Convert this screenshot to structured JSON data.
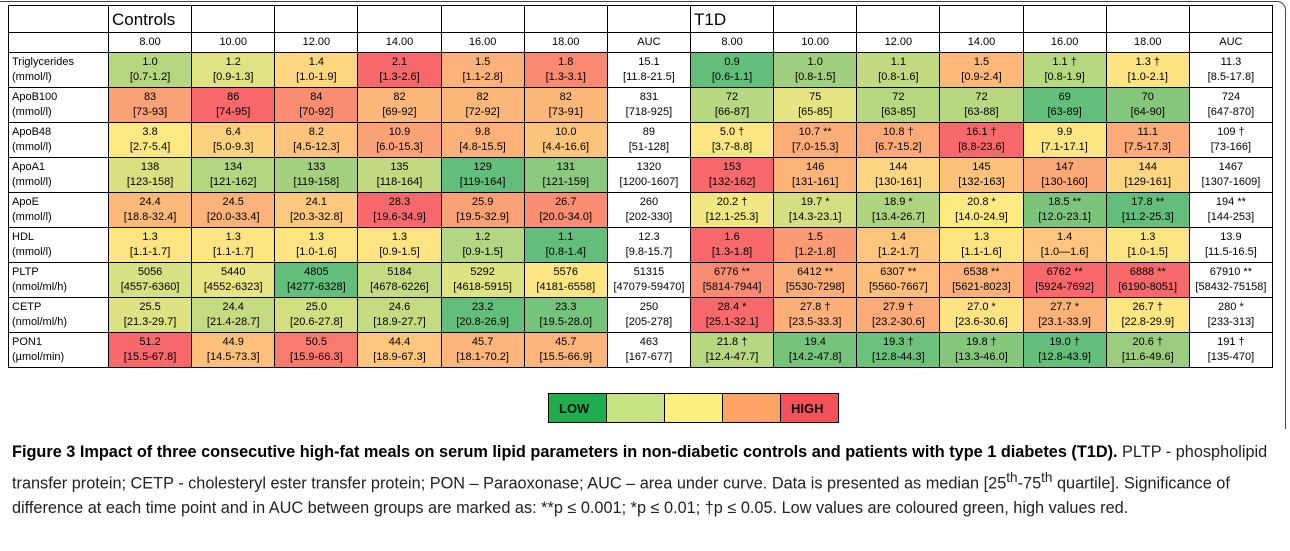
{
  "table": {
    "groups": [
      "Controls",
      "T1D"
    ],
    "columns": [
      "8.00",
      "10.00",
      "12.00",
      "14.00",
      "16.00",
      "18.00",
      "AUC"
    ],
    "rows": [
      {
        "name": "Triglycerides",
        "unit": "(mmol/l)",
        "cells": [
          {
            "value": "1.0",
            "range": "[0.7-1.2]",
            "color": "#b5d780"
          },
          {
            "value": "1.2",
            "range": "[0.9-1.3]",
            "color": "#dfe383"
          },
          {
            "value": "1.4",
            "range": "[1.0-1.9]",
            "color": "#ffd780"
          },
          {
            "value": "2.1",
            "range": "[1.3-2.6]",
            "color": "#f8696b"
          },
          {
            "value": "1.5",
            "range": "[1.1-2.8]",
            "color": "#fdb27a"
          },
          {
            "value": "1.8",
            "range": "[1.3-3.1]",
            "color": "#fa8a72"
          },
          {
            "value": "15.1",
            "range": "[11.8-21.5]"
          },
          {
            "value": "0.9",
            "range": "[0.6-1.1]",
            "color": "#63be7b"
          },
          {
            "value": "1.0",
            "range": "[0.8-1.5]",
            "color": "#9fcf7f"
          },
          {
            "value": "1.1",
            "range": "[0.8-1.6]",
            "color": "#c1da81"
          },
          {
            "value": "1.5",
            "range": "[0.9-2.4]",
            "color": "#fdb87a"
          },
          {
            "value": "1.1 †",
            "range": "[0.8-1.9]",
            "color": "#b8d880"
          },
          {
            "value": "1.3 †",
            "range": "[1.0-2.1]",
            "color": "#fee382"
          },
          {
            "value": "11.3",
            "range": "[8.5-17.8]"
          }
        ]
      },
      {
        "name": "ApoB100",
        "unit": "(mmol/l)",
        "cells": [
          {
            "value": "83",
            "range": "[73-93]",
            "color": "#fba276"
          },
          {
            "value": "86",
            "range": "[74-95]",
            "color": "#f8696b"
          },
          {
            "value": "84",
            "range": "[70-92]",
            "color": "#fa8c72"
          },
          {
            "value": "82",
            "range": "[69-92]",
            "color": "#fcb77a"
          },
          {
            "value": "82",
            "range": "[72-92]",
            "color": "#fcb77a"
          },
          {
            "value": "82",
            "range": "[73-91]",
            "color": "#fcb77a"
          },
          {
            "value": "831",
            "range": "[718-925]"
          },
          {
            "value": "72",
            "range": "[66-87]",
            "color": "#b8d780"
          },
          {
            "value": "75",
            "range": "[65-85]",
            "color": "#e6e483"
          },
          {
            "value": "72",
            "range": "[63-85]",
            "color": "#b8d780"
          },
          {
            "value": "72",
            "range": "[63-88]",
            "color": "#b8d780"
          },
          {
            "value": "69",
            "range": "[63-89]",
            "color": "#63be7b"
          },
          {
            "value": "70",
            "range": "[64-90]",
            "color": "#86c77d"
          },
          {
            "value": "724",
            "range": "[647-870]"
          }
        ]
      },
      {
        "name": "ApoB48",
        "unit": "(mmol/l)",
        "cells": [
          {
            "value": "3.8",
            "range": "[2.7-5.4]",
            "color": "#fee883"
          },
          {
            "value": "6.4",
            "range": "[5.0-9.3]",
            "color": "#fdd27f"
          },
          {
            "value": "8.2",
            "range": "[4.5-12.3]",
            "color": "#fdc27c"
          },
          {
            "value": "10.9",
            "range": "[6.0-15.3]",
            "color": "#fba276"
          },
          {
            "value": "9.8",
            "range": "[4.8-15.5]",
            "color": "#fcb179"
          },
          {
            "value": "10.0",
            "range": "[4.4-16.6]",
            "color": "#fdc47c"
          },
          {
            "value": "89",
            "range": "[51-128]"
          },
          {
            "value": "5.0 †",
            "range": "[3.7-8.8]",
            "color": "#fee683"
          },
          {
            "value": "10.7 **",
            "range": "[7.0-15.3]",
            "color": "#fcae78"
          },
          {
            "value": "10.8 †",
            "range": "[6.7-15.2]",
            "color": "#fcaa78"
          },
          {
            "value": "16.1 †",
            "range": "[8.8-23.6]",
            "color": "#f8696b"
          },
          {
            "value": "9.9",
            "range": "[7.1-17.1]",
            "color": "#fee683"
          },
          {
            "value": "11.1",
            "range": "[7.5-17.3]",
            "color": "#fcac78"
          },
          {
            "value": "109 †",
            "range": "[73-166]"
          }
        ]
      },
      {
        "name": "ApoA1",
        "unit": "(mmol/l)",
        "cells": [
          {
            "value": "138",
            "range": "[123-158]",
            "color": "#d9e082"
          },
          {
            "value": "134",
            "range": "[121-162]",
            "color": "#b3d680"
          },
          {
            "value": "133",
            "range": "[119-158]",
            "color": "#a5d17f"
          },
          {
            "value": "135",
            "range": "[118-164]",
            "color": "#c2da81"
          },
          {
            "value": "129",
            "range": "[119-164]",
            "color": "#63be7b"
          },
          {
            "value": "131",
            "range": "[121-159]",
            "color": "#8cc97e"
          },
          {
            "value": "1320",
            "range": "[1200-1607]"
          },
          {
            "value": "153",
            "range": "[132-162]",
            "color": "#f8696b"
          },
          {
            "value": "146",
            "range": "[131-161]",
            "color": "#fcb479"
          },
          {
            "value": "144",
            "range": "[130-161]",
            "color": "#fed580"
          },
          {
            "value": "145",
            "range": "[132-163]",
            "color": "#fcc27c"
          },
          {
            "value": "147",
            "range": "[130-160]",
            "color": "#fba877"
          },
          {
            "value": "144",
            "range": "[129-161]",
            "color": "#fed580"
          },
          {
            "value": "1467",
            "range": "[1307-1609]"
          }
        ]
      },
      {
        "name": "ApoE",
        "unit": "(mmol/l)",
        "cells": [
          {
            "value": "24.4",
            "range": "[18.8-32.4]",
            "color": "#fdb97a"
          },
          {
            "value": "24.5",
            "range": "[20.0-33.4]",
            "color": "#fcb379"
          },
          {
            "value": "24.1",
            "range": "[20.3-32.8]",
            "color": "#fec87e"
          },
          {
            "value": "28.3",
            "range": "[19.6-34.9]",
            "color": "#f8696b"
          },
          {
            "value": "25.9",
            "range": "[19.5-32.9]",
            "color": "#fba176"
          },
          {
            "value": "26.7",
            "range": "[20.0-34.0]",
            "color": "#fa8d72"
          },
          {
            "value": "260",
            "range": "[202-330]"
          },
          {
            "value": "20.2 †",
            "range": "[12.1-25.3]",
            "color": "#f0e784"
          },
          {
            "value": "19.7 *",
            "range": "[14.3-23.1]",
            "color": "#d3df82"
          },
          {
            "value": "18.9 *",
            "range": "[13.4-26.7]",
            "color": "#aed480"
          },
          {
            "value": "20.8 *",
            "range": "[14.0-24.9]",
            "color": "#fee983"
          },
          {
            "value": "18.5 **",
            "range": "[12.0-23.1]",
            "color": "#7cc47c"
          },
          {
            "value": "17.8 **",
            "range": "[11.2-25.3]",
            "color": "#63be7b"
          },
          {
            "value": "194 **",
            "range": "[144-253]"
          }
        ]
      },
      {
        "name": "HDL",
        "unit": "(mmol/l)",
        "cells": [
          {
            "value": "1.3",
            "range": "[1.1-1.7]",
            "color": "#fee482"
          },
          {
            "value": "1.3",
            "range": "[1.1-1.7]",
            "color": "#fee482"
          },
          {
            "value": "1.3",
            "range": "[1.0-1.6]",
            "color": "#fee482"
          },
          {
            "value": "1.3",
            "range": "[0.9-1.5]",
            "color": "#fee482"
          },
          {
            "value": "1.2",
            "range": "[0.9-1.5]",
            "color": "#b3d680"
          },
          {
            "value": "1.1",
            "range": "[0.8-1.4]",
            "color": "#63be7b"
          },
          {
            "value": "12.3",
            "range": "[9.8-15.7]"
          },
          {
            "value": "1.6",
            "range": "[1.3-1.8]",
            "color": "#f8696b"
          },
          {
            "value": "1.5",
            "range": "[1.2-1.8]",
            "color": "#fb9b75"
          },
          {
            "value": "1.4",
            "range": "[1.2-1.7]",
            "color": "#fdc57d"
          },
          {
            "value": "1.3",
            "range": "[1.1-1.6]",
            "color": "#fee482"
          },
          {
            "value": "1.4",
            "range": "[1.0—1.6]",
            "color": "#fdc57d"
          },
          {
            "value": "1.3",
            "range": "[1.0-1.5]",
            "color": "#fee482"
          },
          {
            "value": "13.9",
            "range": "[11.5-16.5]"
          }
        ]
      },
      {
        "name": "PLTP",
        "unit": "(nmol/ml/h)",
        "cells": [
          {
            "value": "5056",
            "range": "[4557-6360]",
            "color": "#d7e082"
          },
          {
            "value": "5440",
            "range": "[4552-6323]",
            "color": "#e9e583"
          },
          {
            "value": "4805",
            "range": "[4277-6328]",
            "color": "#63be7b"
          },
          {
            "value": "5184",
            "range": "[4678-6226]",
            "color": "#c5db81"
          },
          {
            "value": "5292",
            "range": "[4618-5915]",
            "color": "#dde283"
          },
          {
            "value": "5576",
            "range": "[4181-6558]",
            "color": "#fee683"
          },
          {
            "value": "51315",
            "range": "[47079-59470]"
          },
          {
            "value": "6776 **",
            "range": "[5814-7944]",
            "color": "#fa8c72"
          },
          {
            "value": "6412 **",
            "range": "[5530-7298]",
            "color": "#fcaf79"
          },
          {
            "value": "6307 **",
            "range": "[5560-7667]",
            "color": "#fdbf7b"
          },
          {
            "value": "6538 **",
            "range": "[5621-8023]",
            "color": "#fcb179"
          },
          {
            "value": "6762 **",
            "range": "[5924-7692]",
            "color": "#f8696b"
          },
          {
            "value": "6888 **",
            "range": "[6190-8051]",
            "color": "#f8696b"
          },
          {
            "value": "67910 **",
            "range": "[58432-75158]"
          }
        ]
      },
      {
        "name": "CETP",
        "unit": "(nmol/ml/h)",
        "cells": [
          {
            "value": "25.5",
            "range": "[21.3-29.7]",
            "color": "#dfe283"
          },
          {
            "value": "24.4",
            "range": "[21.4-28.7]",
            "color": "#c5db81"
          },
          {
            "value": "25.0",
            "range": "[20.6-27.8]",
            "color": "#d2de82"
          },
          {
            "value": "24.6",
            "range": "[18.9-27.7]",
            "color": "#c5db81"
          },
          {
            "value": "23.2",
            "range": "[20.8-26.9]",
            "color": "#63be7b"
          },
          {
            "value": "23.3",
            "range": "[19.5-28.0]",
            "color": "#75c37c"
          },
          {
            "value": "250",
            "range": "[205-278]"
          },
          {
            "value": "28.4 *",
            "range": "[25.1-32.1]",
            "color": "#f8696b"
          },
          {
            "value": "27.8 †",
            "range": "[23.5-33.3]",
            "color": "#fcaf79"
          },
          {
            "value": "27.9 †",
            "range": "[23.2-30.6]",
            "color": "#fcaa78"
          },
          {
            "value": "27.0 *",
            "range": "[23.6-30.6]",
            "color": "#fee382"
          },
          {
            "value": "27.7 *",
            "range": "[23.1-33.9]",
            "color": "#fcb379"
          },
          {
            "value": "26.7 †",
            "range": "[22.8-29.9]",
            "color": "#fee683"
          },
          {
            "value": "280 *",
            "range": "[233-313]"
          }
        ]
      },
      {
        "name": "PON1",
        "unit": "(µmol/min)",
        "cells": [
          {
            "value": "51.2",
            "range": "[15.5-67.8]",
            "color": "#f8696b"
          },
          {
            "value": "44.9",
            "range": "[14.5-73.3]",
            "color": "#fdc17c"
          },
          {
            "value": "50.5",
            "range": "[15.9-66.3]",
            "color": "#f97b6e"
          },
          {
            "value": "44.4",
            "range": "[18.9-67.3]",
            "color": "#fdc67d"
          },
          {
            "value": "45.7",
            "range": "[18.1-70.2]",
            "color": "#fcb57a"
          },
          {
            "value": "45.7",
            "range": "[15.5-66.9]",
            "color": "#fcb57a"
          },
          {
            "value": "463",
            "range": "[167-677]"
          },
          {
            "value": "21.8 †",
            "range": "[12.4-47.7]",
            "color": "#b8d780"
          },
          {
            "value": "19.4",
            "range": "[14.2-47.8]",
            "color": "#76c37c"
          },
          {
            "value": "19.3 †",
            "range": "[12.8-44.3]",
            "color": "#6cc17c"
          },
          {
            "value": "19.8 †",
            "range": "[13.3-46.0]",
            "color": "#86c77d"
          },
          {
            "value": "19.0 †",
            "range": "[12.8-43.9]",
            "color": "#63be7b"
          },
          {
            "value": "20.6 †",
            "range": "[11.6-49.6]",
            "color": "#9ccd7e"
          },
          {
            "value": "191 †",
            "range": "[135-470]"
          }
        ]
      }
    ]
  },
  "legend": {
    "low": "LOW",
    "high": "HIGH",
    "colors": [
      "#1eae4e",
      "#c4e184",
      "#fdef80",
      "#fca566",
      "#f5535c"
    ]
  },
  "caption": {
    "title": "Figure 3 Impact of three consecutive high-fat meals on serum lipid parameters in non-diabetic controls and patients with type 1 diabetes (T1D).",
    "body": [
      {
        "text": " PLTP - phospholipid transfer protein; CETP - cholesteryl ester transfer protein; PON – Paraoxonase; AUC – area under curve. Data is presented as median [25"
      },
      {
        "text": "th",
        "sup": true
      },
      {
        "text": "-75"
      },
      {
        "text": "th",
        "sup": true
      },
      {
        "text": " quartile]. Significance of difference at each time point and in AUC between groups are marked as: **p ≤ 0.001; *p ≤ 0.01; †p ≤ 0.05. Low values are coloured green, high values red."
      }
    ]
  }
}
